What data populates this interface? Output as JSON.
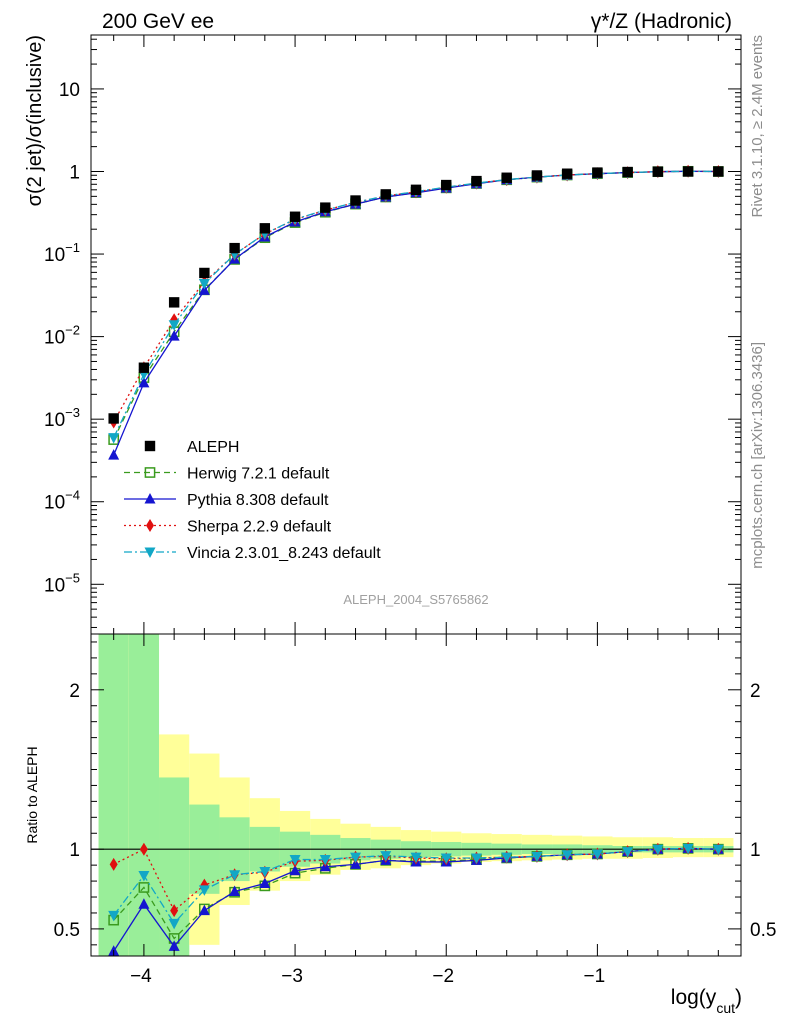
{
  "header": {
    "left_label": "200 GeV ee",
    "right_label": "γ*/Z (Hadronic)"
  },
  "side_labels": {
    "rivet": "Rivet 3.1.10, ≥ 2.4M events",
    "mcplots": "mcplots.cern.ch [arXiv:1306.3436]"
  },
  "watermark": "ALEPH_2004_S5765862",
  "axes": {
    "xlabel": "log(y_cut)",
    "ylabel_top": "σ(2 jet)/σ(inclusive)",
    "ylabel_bottom": "Ratio to ALEPH"
  },
  "chart_data": {
    "type": "scatter",
    "x_range": [
      -4.35,
      -0.05
    ],
    "top_y_range": [
      2.5e-06,
      45
    ],
    "top_y_scale": "log",
    "ratio_y_range": [
      0.33,
      2.35
    ],
    "x_ticks": [
      -4,
      -3,
      -2,
      -1
    ],
    "top_y_ticks": [
      1e-05,
      0.0001,
      0.001,
      0.01,
      0.1,
      1,
      10
    ],
    "ratio_y_ticks": [
      0.5,
      1,
      2
    ],
    "legend_position": "bottom-left",
    "x": [
      -4.2,
      -4.0,
      -3.8,
      -3.6,
      -3.4,
      -3.2,
      -3.0,
      -2.8,
      -2.6,
      -2.4,
      -2.2,
      -2.0,
      -1.8,
      -1.6,
      -1.4,
      -1.2,
      -1.0,
      -0.8,
      -0.6,
      -0.4,
      -0.2
    ],
    "bin_edges": [
      -4.3,
      -4.1,
      -3.9,
      -3.7,
      -3.5,
      -3.3,
      -3.1,
      -2.9,
      -2.7,
      -2.5,
      -2.3,
      -2.1,
      -1.9,
      -1.7,
      -1.5,
      -1.3,
      -1.1,
      -0.9,
      -0.7,
      -0.5,
      -0.3,
      -0.1
    ],
    "data": {
      "name": "ALEPH",
      "color": "#000000",
      "values": [
        0.00102,
        0.0042,
        0.026,
        0.059,
        0.118,
        0.205,
        0.283,
        0.365,
        0.445,
        0.528,
        0.6,
        0.685,
        0.765,
        0.84,
        0.895,
        0.94,
        0.97,
        0.985,
        0.995,
        1.0,
        1.0
      ],
      "band_inner_up": [
        2.35,
        2.35,
        1.45,
        1.28,
        1.2,
        1.14,
        1.11,
        1.09,
        1.07,
        1.06,
        1.05,
        1.045,
        1.04,
        1.035,
        1.03,
        1.03,
        1.025,
        1.02,
        1.02,
        1.02,
        1.02
      ],
      "band_inner_down": [
        0.33,
        0.33,
        0.33,
        0.72,
        0.8,
        0.86,
        0.89,
        0.91,
        0.93,
        0.94,
        0.95,
        0.955,
        0.96,
        0.965,
        0.97,
        0.97,
        0.975,
        0.98,
        0.98,
        0.98,
        0.98
      ],
      "band_outer_up": [
        2.35,
        2.35,
        1.72,
        1.6,
        1.45,
        1.32,
        1.24,
        1.19,
        1.16,
        1.14,
        1.12,
        1.11,
        1.1,
        1.095,
        1.09,
        1.085,
        1.08,
        1.075,
        1.075,
        1.07,
        1.07
      ],
      "band_outer_down": [
        0.33,
        0.33,
        0.33,
        0.4,
        0.65,
        0.74,
        0.8,
        0.84,
        0.87,
        0.88,
        0.9,
        0.91,
        0.92,
        0.925,
        0.93,
        0.935,
        0.94,
        0.94,
        0.945,
        0.95,
        0.95
      ]
    },
    "series": [
      {
        "name": "Herwig 7.2.1 default",
        "color": "#3a9b1e",
        "marker": "open-square",
        "line": "dashed",
        "ratio": [
          0.555,
          0.76,
          0.44,
          0.625,
          0.73,
          0.77,
          0.85,
          0.88,
          0.905,
          0.93,
          0.925,
          0.925,
          0.935,
          0.945,
          0.955,
          0.965,
          0.97,
          0.985,
          1.0,
          1.005,
          1.0
        ]
      },
      {
        "name": "Pythia 8.308 default",
        "color": "#1515d0",
        "marker": "triangle-up",
        "line": "solid",
        "ratio": [
          0.36,
          0.655,
          0.39,
          0.615,
          0.735,
          0.785,
          0.865,
          0.89,
          0.905,
          0.93,
          0.92,
          0.92,
          0.93,
          0.945,
          0.955,
          0.965,
          0.97,
          0.985,
          1.0,
          1.005,
          1.0
        ]
      },
      {
        "name": "Sherpa 2.2.9 default",
        "color": "#e01010",
        "marker": "diamond",
        "line": "dotted",
        "ratio": [
          0.905,
          1.0,
          0.615,
          0.775,
          0.84,
          0.855,
          0.925,
          0.93,
          0.95,
          0.955,
          0.945,
          0.94,
          0.945,
          0.95,
          0.955,
          0.965,
          0.97,
          0.985,
          1.0,
          1.005,
          1.0
        ]
      },
      {
        "name": "Vincia 2.3.01_8.243 default",
        "color": "#12a7c6",
        "marker": "triangle-down",
        "line": "dashdot",
        "ratio": [
          0.585,
          0.835,
          0.535,
          0.745,
          0.84,
          0.86,
          0.935,
          0.935,
          0.95,
          0.96,
          0.95,
          0.945,
          0.945,
          0.95,
          0.955,
          0.965,
          0.97,
          0.985,
          1.0,
          1.005,
          1.0
        ]
      }
    ]
  }
}
